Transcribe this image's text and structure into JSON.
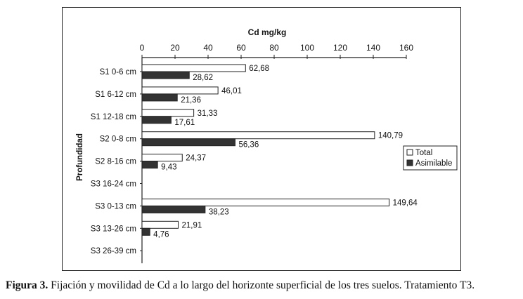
{
  "chart_data": {
    "type": "bar",
    "orientation": "horizontal",
    "title": "Cd mg/kg",
    "ylabel": "Profundidad",
    "xlim": [
      0,
      160
    ],
    "xticks": [
      0,
      20,
      40,
      60,
      80,
      100,
      120,
      140,
      160
    ],
    "categories": [
      "S1 0-6 cm",
      "S1 6-12 cm",
      "S1 12-18 cm",
      "S2 0-8 cm",
      "S2 8-16 cm",
      "S3 16-24 cm",
      "S3 0-13 cm",
      "S3 13-26 cm",
      "S3 26-39 cm"
    ],
    "series": [
      {
        "name": "Total",
        "color": "#ffffff",
        "values": [
          62.68,
          46.01,
          31.33,
          140.79,
          24.37,
          null,
          149.64,
          21.91,
          null
        ],
        "labels": [
          "62,68",
          "46,01",
          "31,33",
          "140,79",
          "24,37",
          "",
          "149,64",
          "21,91",
          ""
        ]
      },
      {
        "name": "Asimilable",
        "color": "#333333",
        "values": [
          28.62,
          21.36,
          17.61,
          56.36,
          9.43,
          null,
          38.23,
          4.76,
          null
        ],
        "labels": [
          "28,62",
          "21,36",
          "17,61",
          "56,36",
          "9,43",
          "",
          "38,23",
          "4,76",
          ""
        ]
      }
    ],
    "legend_position": "right",
    "grid": false
  },
  "caption": {
    "label": "Figura 3.",
    "text": " Fijación y movilidad de Cd a lo largo del horizonte superficial de los tres suelos. Tratamiento T3."
  }
}
